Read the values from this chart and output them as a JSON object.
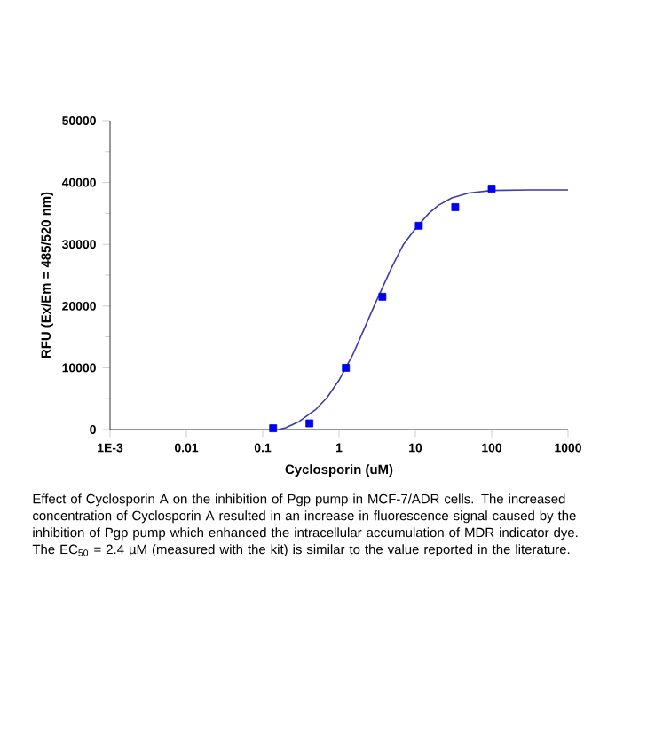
{
  "chart_data": {
    "type": "scatter",
    "xlabel": "Cyclosporin (uM)",
    "ylabel": "RFU (Ex/Em = 485/520 nm)",
    "log": "x",
    "xlim": [
      0.001,
      1000
    ],
    "ylim": [
      0,
      50000
    ],
    "xticks": [
      {
        "value": 0.001,
        "label": "1E-3"
      },
      0.01,
      0.1,
      1,
      10,
      100,
      1000
    ],
    "yticks": [
      0,
      10000,
      20000,
      30000,
      40000,
      50000
    ],
    "series": [
      {
        "marker": "square",
        "color": "#0000ee",
        "x": [
          0.137,
          0.41,
          1.23,
          3.7,
          11.1,
          33.3,
          100
        ],
        "values": [
          200,
          1000,
          10000,
          21500,
          33000,
          36000,
          39000
        ]
      },
      {
        "type": "line",
        "marker": "none",
        "line_style": "solid",
        "color": "#3c3caa",
        "x": [
          0.16,
          0.2,
          0.3,
          0.5,
          0.7,
          1,
          1.5,
          2,
          3,
          5,
          7,
          10,
          15,
          20,
          30,
          50,
          100,
          300,
          1000
        ],
        "values": [
          0,
          300,
          1300,
          3300,
          5200,
          8000,
          12000,
          15500,
          20500,
          26500,
          30000,
          32500,
          35000,
          36300,
          37500,
          38300,
          38700,
          38800,
          38800
        ]
      }
    ],
    "annotations": [
      "Effect of Cyclosporin A on the inhibition of Pgp pump in MCF-7/ADR cells. The increased concentration of Cyclosporin A resulted in an increase in fluorescence signal caused by the inhibition of Pgp pump which enhanced the intracellular accumulation of MDR indicator dye. The EC$_{50}$ = 2.4 µM (measured with the kit) is similar to the value reported in the literature."
    ]
  }
}
